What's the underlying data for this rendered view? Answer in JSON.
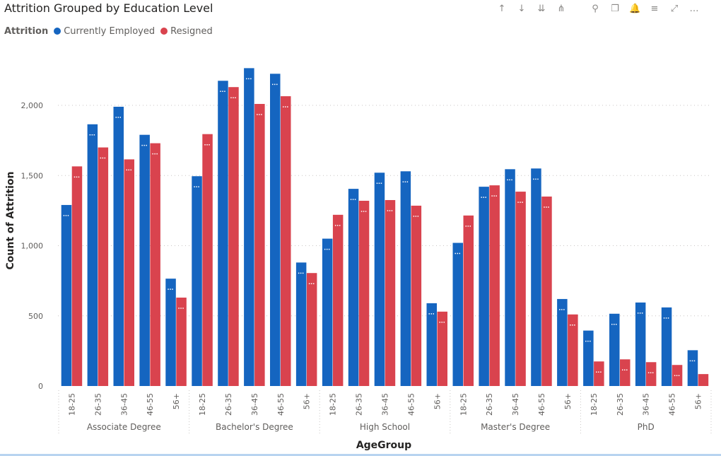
{
  "header": {
    "title": "Attrition Grouped by Education Level"
  },
  "legend": {
    "title": "Attrition",
    "items": [
      {
        "label": "Currently Employed",
        "color": "#1565c0"
      },
      {
        "label": "Resigned",
        "color": "#d9434e"
      }
    ]
  },
  "toolbar": {
    "icons": [
      "arrow-up-icon",
      "arrow-down-icon",
      "double-arrow-down-icon",
      "expand-hierarchy-icon",
      "pin-icon",
      "copy-icon",
      "bell-icon",
      "filter-icon",
      "focus-mode-icon",
      "more-options-icon"
    ],
    "glyphs": [
      "↑",
      "↓",
      "⇊",
      "⋔",
      "⚲",
      "❐",
      "🔔",
      "≡",
      "⤢",
      "…"
    ]
  },
  "chart_data": {
    "type": "bar",
    "xlabel": "AgeGroup",
    "ylabel": "Count of Attrition",
    "ylim": [
      0,
      2300
    ],
    "yticks": [
      0,
      500,
      1000,
      1500,
      2000
    ],
    "ytick_labels": [
      "0",
      "500",
      "1,000",
      "1,500",
      "2,000"
    ],
    "grid": true,
    "legend_position": "top-left",
    "groups": [
      "Associate Degree",
      "Bachelor's Degree",
      "High School",
      "Master's Degree",
      "PhD"
    ],
    "categories": [
      "18-25",
      "26-35",
      "36-45",
      "46-55",
      "56+"
    ],
    "series": [
      {
        "name": "Currently Employed",
        "color": "#1565c0",
        "values": [
          [
            1290,
            1865,
            1990,
            1790,
            765
          ],
          [
            1495,
            2175,
            2265,
            2225,
            880
          ],
          [
            1050,
            1405,
            1520,
            1530,
            590
          ],
          [
            1020,
            1420,
            1545,
            1550,
            620
          ],
          [
            395,
            515,
            595,
            560,
            255
          ]
        ]
      },
      {
        "name": "Resigned",
        "color": "#d9434e",
        "values": [
          [
            1565,
            1700,
            1615,
            1730,
            630
          ],
          [
            1795,
            2130,
            2010,
            2065,
            805
          ],
          [
            1220,
            1320,
            1325,
            1285,
            530
          ],
          [
            1215,
            1430,
            1385,
            1350,
            510
          ],
          [
            175,
            190,
            170,
            150,
            85
          ]
        ]
      }
    ]
  }
}
